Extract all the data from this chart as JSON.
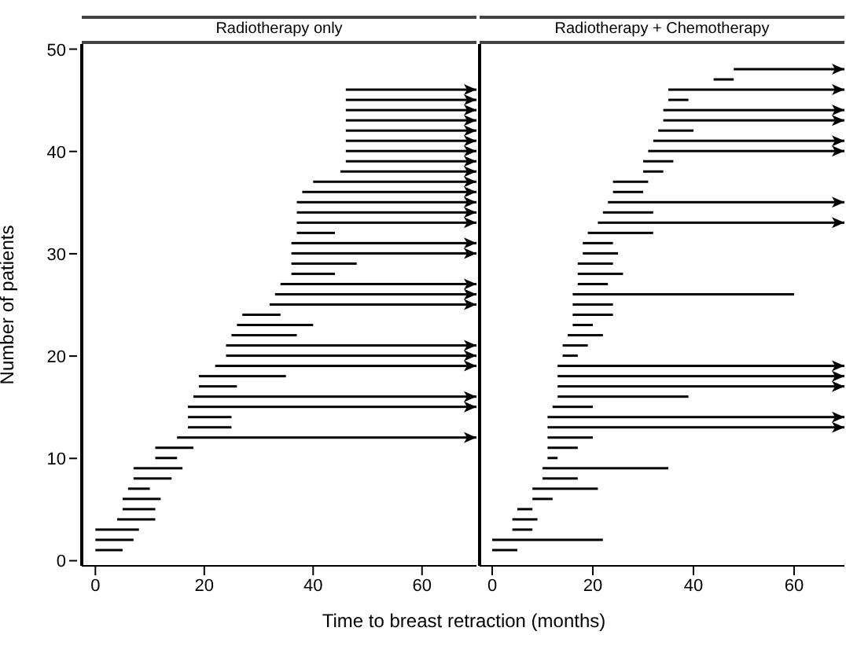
{
  "chart_data": [
    {
      "type": "bar",
      "orientation": "horizontal",
      "title": "Radiotherapy only",
      "ylabel": "Number of patients",
      "xlabel": "Time to breast retraction (months)",
      "categories": [
        "50",
        null,
        null,
        null,
        null,
        null,
        null,
        null,
        null,
        null,
        "40",
        null,
        null,
        null,
        null,
        null,
        null,
        null,
        null,
        null,
        "30",
        null,
        null,
        null,
        null,
        null,
        null,
        null,
        null,
        null,
        "20",
        null,
        null,
        null,
        null,
        null,
        null,
        null,
        null,
        null,
        "10",
        null,
        null,
        null,
        null,
        null,
        null,
        null,
        null,
        null,
        "0"
      ],
      "base": [
        null,
        null,
        null,
        null,
        46,
        46,
        46,
        46,
        46,
        46,
        46,
        46,
        45,
        40,
        38,
        37,
        37,
        37,
        37,
        36,
        36,
        36,
        36,
        34,
        33,
        32,
        27,
        26,
        25,
        24,
        24,
        22,
        19,
        19,
        18,
        17,
        17,
        17,
        15,
        11,
        11,
        7,
        7,
        6,
        5,
        5,
        4,
        0,
        0,
        0,
        null
      ],
      "values": [
        null,
        null,
        null,
        null,
        24,
        24,
        24,
        24,
        24,
        24,
        24,
        24,
        25,
        30,
        32,
        33,
        33,
        33,
        7,
        34,
        34,
        12,
        8,
        36,
        37,
        38,
        7,
        14,
        12,
        46,
        46,
        48,
        16,
        7,
        52,
        53,
        8,
        8,
        55,
        7,
        4,
        9,
        7,
        4,
        7,
        6,
        7,
        8,
        7,
        5,
        null
      ],
      "color": "#000000",
      "xlim": [
        -2.5,
        70
      ],
      "xticks": [
        0,
        20,
        40,
        60
      ]
    },
    {
      "type": "bar",
      "orientation": "horizontal",
      "title": "Radiotherapy + Chemotherapy",
      "tick_labels": "x",
      "categories": [
        "50",
        null,
        null,
        null,
        null,
        null,
        null,
        null,
        null,
        null,
        "40",
        null,
        null,
        null,
        null,
        null,
        null,
        null,
        null,
        null,
        "30",
        null,
        null,
        null,
        null,
        null,
        null,
        null,
        null,
        null,
        "20",
        null,
        null,
        null,
        null,
        null,
        null,
        null,
        null,
        null,
        "10",
        null,
        null,
        null,
        null,
        null,
        null,
        null,
        null,
        null,
        "0"
      ],
      "base": [
        null,
        null,
        48,
        44,
        35,
        35,
        34,
        34,
        33,
        32,
        31,
        30,
        30,
        24,
        24,
        23,
        22,
        21,
        19,
        18,
        18,
        17,
        17,
        17,
        16,
        16,
        16,
        16,
        15,
        14,
        14,
        13,
        13,
        13,
        13,
        12,
        11,
        11,
        11,
        11,
        11,
        10,
        10,
        8,
        8,
        5,
        4,
        4,
        0,
        0,
        null
      ],
      "values": [
        null,
        null,
        22,
        4,
        35,
        4,
        36,
        36,
        7,
        38,
        39,
        6,
        4,
        7,
        6,
        47,
        10,
        49,
        13,
        6,
        7,
        7,
        9,
        6,
        44,
        8,
        8,
        4,
        7,
        5,
        3,
        57,
        57,
        57,
        26,
        8,
        59,
        59,
        9,
        6,
        2,
        25,
        7,
        13,
        4,
        3,
        5,
        4,
        22,
        5,
        null
      ],
      "color": "#000000",
      "xlim": [
        -2.5,
        70
      ],
      "xticks": [
        0,
        20,
        40,
        60
      ]
    }
  ]
}
